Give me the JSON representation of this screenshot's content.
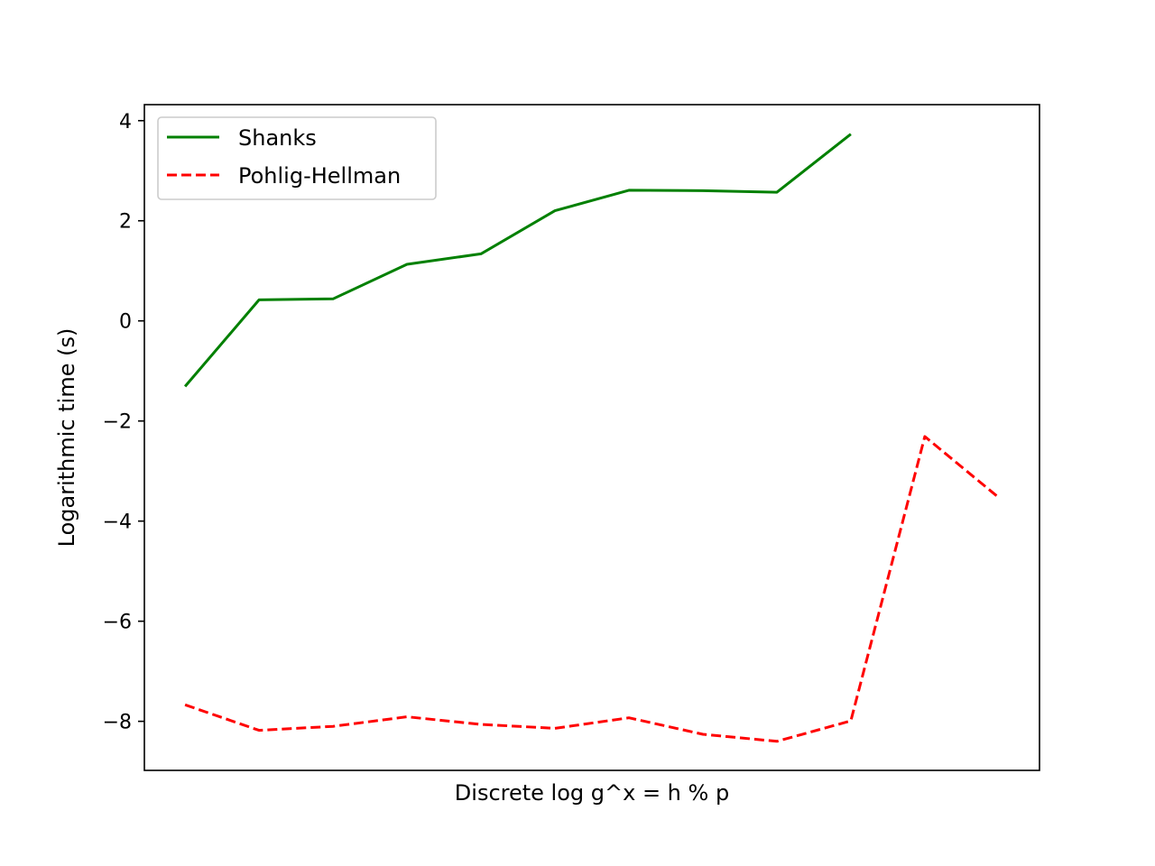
{
  "chart_data": {
    "type": "line",
    "title": "",
    "xlabel": "Discrete log g^x = h % p",
    "ylabel": "Logarithmic time (s)",
    "ylim": [
      -8.98,
      4.32
    ],
    "xlim": [
      -0.55,
      11.55
    ],
    "x_ticks_visible": false,
    "y_ticks": [
      4,
      2,
      0,
      -2,
      -4,
      -6,
      -8
    ],
    "y_tick_labels": [
      "4",
      "2",
      "0",
      "−2",
      "−4",
      "−6",
      "−8"
    ],
    "grid": false,
    "legend_position": "upper-left",
    "series": [
      {
        "name": "Shanks",
        "color": "#008000",
        "dash": "solid",
        "x": [
          0,
          1,
          2,
          3,
          4,
          5,
          6,
          7,
          8,
          9
        ],
        "values": [
          -1.31,
          0.42,
          0.44,
          1.13,
          1.34,
          2.2,
          2.61,
          2.6,
          2.57,
          3.73
        ]
      },
      {
        "name": "Pohlig-Hellman",
        "color": "#ff0000",
        "dash": "dashed",
        "x": [
          0,
          1,
          2,
          3,
          4,
          5,
          6,
          7,
          8,
          9,
          10,
          11
        ],
        "values": [
          -7.67,
          -8.18,
          -8.1,
          -7.91,
          -8.06,
          -8.14,
          -7.93,
          -8.26,
          -8.4,
          -7.99,
          -2.31,
          -3.53
        ]
      }
    ]
  }
}
